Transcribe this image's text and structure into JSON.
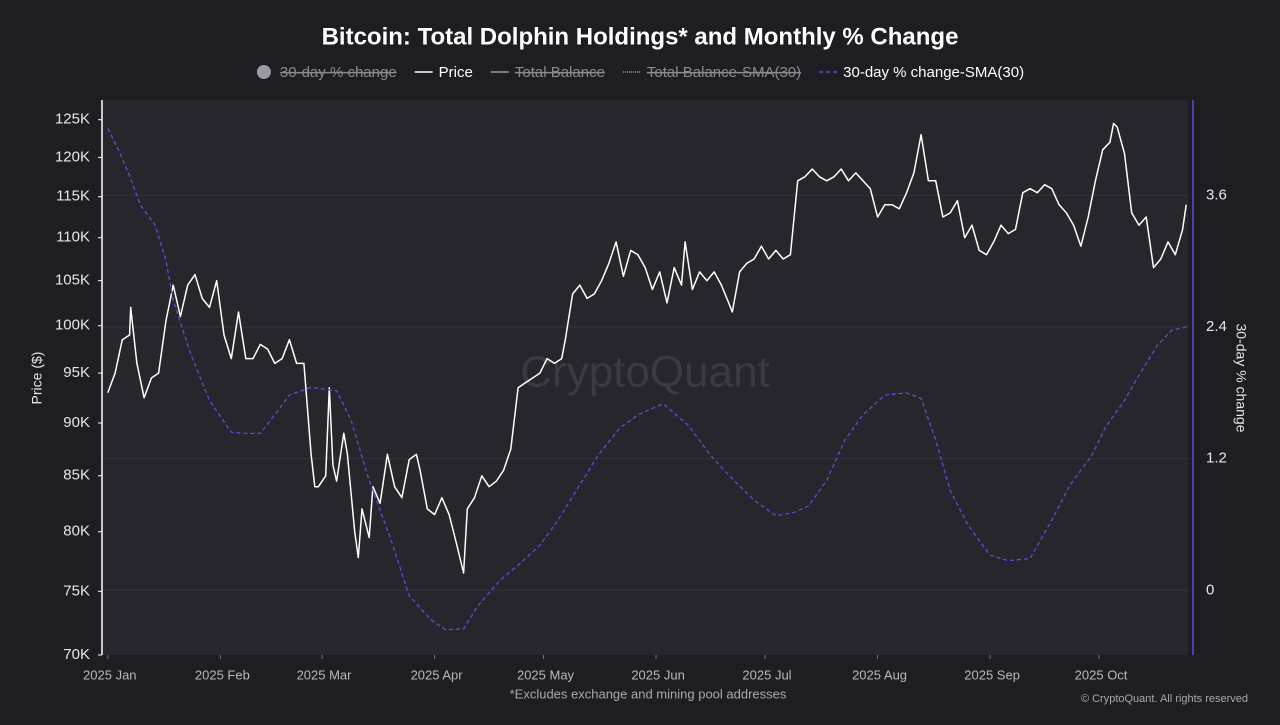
{
  "chart_data": {
    "type": "line",
    "title": "Bitcoin: Total Dolphin Holdings* and Monthly % Change",
    "y_label": "Price ($)",
    "y2_label": "30-day % change",
    "watermark": "CryptoQuant",
    "footnote": "*Excludes exchange and mining pool addresses",
    "copyright": "© CryptoQuant. All rights reserved",
    "log_y": true,
    "grid": true,
    "xlim": [
      -1.6,
      297.5
    ],
    "xticks": [
      {
        "value": 0,
        "label": "2025 Jan"
      },
      {
        "value": 31,
        "label": "2025 Feb"
      },
      {
        "value": 59,
        "label": "2025 Mar"
      },
      {
        "value": 90,
        "label": "2025 Apr"
      },
      {
        "value": 120,
        "label": "2025 May"
      },
      {
        "value": 151,
        "label": "2025 Jun"
      },
      {
        "value": 181,
        "label": "2025 Jul"
      },
      {
        "value": 212,
        "label": "2025 Aug"
      },
      {
        "value": 243,
        "label": "2025 Sep"
      },
      {
        "value": 273,
        "label": "2025 Oct"
      }
    ],
    "ylim": [
      70000,
      127700
    ],
    "yticks": [
      {
        "value": 70000,
        "label": "70K"
      },
      {
        "value": 75000,
        "label": "75K"
      },
      {
        "value": 80000,
        "label": "80K"
      },
      {
        "value": 85000,
        "label": "85K"
      },
      {
        "value": 90000,
        "label": "90K"
      },
      {
        "value": 95000,
        "label": "95K"
      },
      {
        "value": 100000,
        "label": "100K"
      },
      {
        "value": 105000,
        "label": "105K"
      },
      {
        "value": 110000,
        "label": "110K"
      },
      {
        "value": 115000,
        "label": "115K"
      },
      {
        "value": 120000,
        "label": "120K"
      },
      {
        "value": 125000,
        "label": "125K"
      }
    ],
    "y2lim": [
      -0.59,
      4.47
    ],
    "y2ticks": [
      0,
      1.2,
      2.4,
      3.6
    ],
    "series": [
      {
        "name": "30-day % change",
        "color": "#9a9aa3",
        "visible": false,
        "style": "circle"
      },
      {
        "name": "Price",
        "color": "#ffffff",
        "visible": true,
        "style": "solid",
        "x": [
          0,
          2,
          4,
          6,
          6.3,
          8,
          10,
          12,
          14,
          16,
          18,
          20,
          22,
          24,
          26,
          28,
          30,
          32,
          34,
          36,
          38,
          40,
          42,
          44,
          46,
          48,
          50,
          52,
          54,
          56,
          57,
          58,
          60,
          61,
          62,
          63,
          65,
          66,
          68,
          69,
          70,
          72,
          73,
          75,
          77,
          79,
          81,
          83,
          85,
          86,
          88,
          90,
          92,
          94,
          96,
          98,
          99,
          101,
          103,
          105,
          107,
          109,
          111,
          113,
          115,
          117,
          119,
          121,
          123,
          125,
          126,
          128,
          130,
          132,
          134,
          136,
          138,
          140,
          142,
          144,
          146,
          148,
          150,
          152,
          154,
          156,
          158,
          159,
          161,
          163,
          165,
          167,
          169,
          171,
          172,
          174,
          176,
          178,
          180,
          182,
          184,
          186,
          188,
          190,
          192,
          194,
          196,
          198,
          200,
          202,
          204,
          206,
          208,
          210,
          212,
          214,
          216,
          218,
          220,
          222,
          224,
          226,
          228,
          230,
          232,
          234,
          236,
          238,
          240,
          242,
          244,
          246,
          248,
          250,
          252,
          254,
          256,
          258,
          260,
          262,
          264,
          266,
          268,
          270,
          272,
          274,
          276,
          277,
          278,
          280,
          282,
          284,
          286,
          288,
          290,
          292,
          294,
          296,
          297
        ],
        "values": [
          93000,
          95000,
          98500,
          99000,
          102000,
          96000,
          92500,
          94500,
          95000,
          100500,
          104500,
          101000,
          104500,
          105700,
          103000,
          102000,
          105000,
          99000,
          96500,
          101500,
          96500,
          96500,
          98000,
          97500,
          96000,
          96500,
          98500,
          96000,
          96000,
          87000,
          84000,
          84000,
          85000,
          93500,
          86000,
          84500,
          89000,
          87000,
          80000,
          77800,
          82000,
          79500,
          84000,
          82500,
          87000,
          84000,
          83000,
          86500,
          87000,
          85500,
          82000,
          81500,
          83000,
          81500,
          79000,
          76500,
          82000,
          83000,
          85000,
          84000,
          84500,
          85500,
          87500,
          93500,
          94000,
          94500,
          95000,
          96500,
          96000,
          96500,
          98500,
          103500,
          104500,
          103000,
          103500,
          105000,
          107000,
          109500,
          105500,
          108500,
          108000,
          106500,
          104000,
          106000,
          102500,
          106500,
          104500,
          109500,
          104000,
          106000,
          105000,
          106000,
          104500,
          102500,
          101500,
          106000,
          107000,
          107500,
          109000,
          107500,
          108500,
          107500,
          108000,
          117000,
          117500,
          118500,
          117500,
          117000,
          117500,
          118500,
          117000,
          118000,
          117000,
          116000,
          112500,
          114000,
          114000,
          113500,
          115500,
          118000,
          123000,
          117000,
          117000,
          112500,
          113000,
          114500,
          110000,
          111500,
          108500,
          108000,
          109500,
          111500,
          110500,
          111000,
          115500,
          116000,
          115500,
          116500,
          116000,
          114000,
          113000,
          111500,
          109000,
          112500,
          117000,
          121000,
          122000,
          124500,
          124000,
          120500,
          113000,
          111500,
          112500,
          106500,
          107500,
          109500,
          108000,
          111000,
          114000
        ]
      },
      {
        "name": "Total Balance",
        "color": "#9a9aa3",
        "visible": false,
        "style": "solid"
      },
      {
        "name": "Total Balance-SMA(30)",
        "color": "#9a9aa3",
        "visible": false,
        "style": "dotted"
      },
      {
        "name": "30-day % change-SMA(30)",
        "color": "#5b4fd6",
        "visible": true,
        "style": "dashed",
        "axis": "y2",
        "x": [
          0,
          3,
          6,
          9,
          13,
          16,
          18,
          23,
          28,
          34,
          38,
          42,
          46,
          50,
          56,
          63,
          67,
          72,
          78,
          83,
          89,
          93,
          98,
          102,
          108,
          113,
          119,
          124,
          130,
          135,
          141,
          146,
          153,
          160,
          166,
          171,
          178,
          184,
          189,
          193,
          198,
          203,
          208,
          214,
          220,
          224,
          228,
          232,
          237,
          243,
          248,
          254,
          260,
          265,
          271,
          275,
          280,
          284,
          289,
          293,
          297
        ],
        "values": [
          4.21,
          4.01,
          3.78,
          3.51,
          3.33,
          3.01,
          2.64,
          2.14,
          1.73,
          1.44,
          1.43,
          1.43,
          1.6,
          1.78,
          1.85,
          1.82,
          1.55,
          1.0,
          0.46,
          -0.05,
          -0.27,
          -0.36,
          -0.35,
          -0.14,
          0.09,
          0.23,
          0.41,
          0.64,
          0.96,
          1.23,
          1.48,
          1.6,
          1.7,
          1.5,
          1.23,
          1.05,
          0.82,
          0.68,
          0.71,
          0.77,
          1.0,
          1.37,
          1.6,
          1.78,
          1.8,
          1.75,
          1.37,
          0.91,
          0.59,
          0.32,
          0.27,
          0.29,
          0.64,
          0.96,
          1.23,
          1.5,
          1.73,
          1.96,
          2.23,
          2.37,
          2.4
        ]
      }
    ]
  }
}
